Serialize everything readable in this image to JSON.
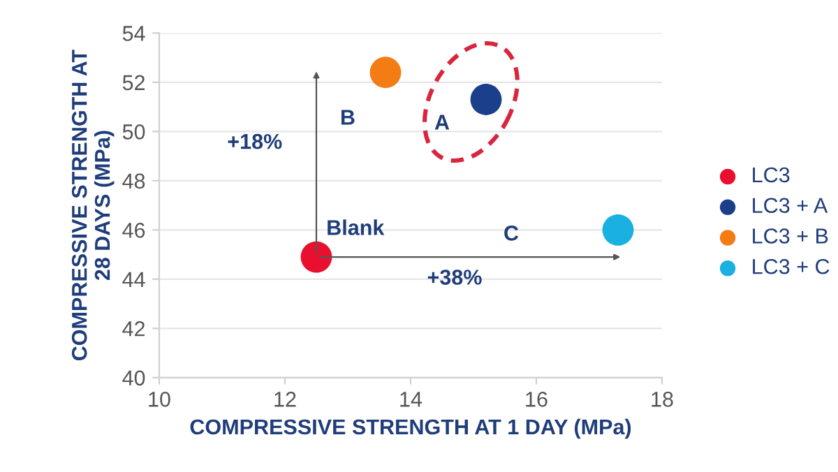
{
  "chart_data": {
    "type": "scatter",
    "xlabel": "COMPRESSIVE STRENGTH AT 1 DAY (MPa)",
    "ylabel": "COMPRESSIVE STRENGTH AT\n28 DAYS (MPa)",
    "series": [
      {
        "name": "LC3",
        "color": "#e8102e",
        "x": [
          12.5
        ],
        "values": [
          44.9
        ]
      },
      {
        "name": "LC3 + A",
        "color": "#1b3f8b",
        "x": [
          15.2
        ],
        "values": [
          51.3
        ]
      },
      {
        "name": "LC3 + B",
        "color": "#f47c14",
        "x": [
          13.6
        ],
        "values": [
          52.4
        ]
      },
      {
        "name": "LC3 + C",
        "color": "#1ab0e0",
        "x": [
          17.3
        ],
        "values": [
          46.0
        ]
      }
    ],
    "xlim": [
      10,
      18
    ],
    "xticks": [
      10,
      12,
      14,
      16,
      18
    ],
    "ylim": [
      40,
      54
    ],
    "yticks": [
      40,
      42,
      44,
      46,
      48,
      50,
      52,
      54
    ],
    "grid": "y",
    "legend": "right",
    "marker": "circle",
    "annotations": [
      "B",
      "+18%",
      "A",
      "Blank",
      "C",
      "+38%"
    ]
  }
}
